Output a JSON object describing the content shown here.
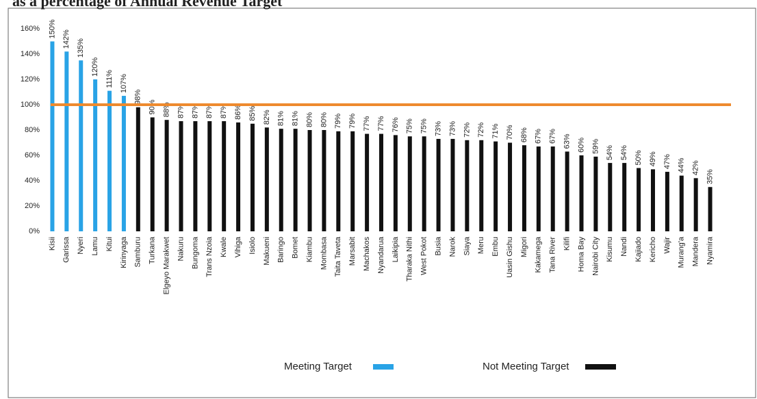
{
  "chart_data": {
    "type": "bar",
    "title": "as a percentage of Annual Revenue Target",
    "categories": [
      "Kisii",
      "Garissa",
      "Nyeri",
      "Lamu",
      "Kitui",
      "Kirinyaga",
      "Samburu",
      "Turkana",
      "Elgeyo Marakwet",
      "Nakuru",
      "Bungoma",
      "Trans Nzoia",
      "Kwale",
      "Vihiga",
      "Isiolo",
      "Makueni",
      "Baringo",
      "Bomet",
      "Kiambu",
      "Mombasa",
      "Taita Taveta",
      "Marsabit",
      "Machakos",
      "Nyandarua",
      "Laikipia",
      "Tharaka Nithi",
      "West Pokot",
      "Busia",
      "Narok",
      "Siaya",
      "Meru",
      "Embu",
      "Uasin Gishu",
      "Migori",
      "Kakamega",
      "Tana River",
      "Kilifi",
      "Homa Bay",
      "Nairobi City",
      "Kisumu",
      "Nandi",
      "Kajiado",
      "Kericho",
      "Wajir",
      "Murang'a",
      "Mandera",
      "Nyamira"
    ],
    "series": [
      {
        "name": "Meeting Target",
        "color": "#29a3e6",
        "values": [
          150,
          142,
          135,
          120,
          111,
          107,
          null,
          null,
          null,
          null,
          null,
          null,
          null,
          null,
          null,
          null,
          null,
          null,
          null,
          null,
          null,
          null,
          null,
          null,
          null,
          null,
          null,
          null,
          null,
          null,
          null,
          null,
          null,
          null,
          null,
          null,
          null,
          null,
          null,
          null,
          null,
          null,
          null,
          null,
          null,
          null,
          null
        ],
        "value_labels": [
          "150%",
          "142%",
          "135%",
          "120%",
          "111%",
          "107%",
          null,
          null,
          null,
          null,
          null,
          null,
          null,
          null,
          null,
          null,
          null,
          null,
          null,
          null,
          null,
          null,
          null,
          null,
          null,
          null,
          null,
          null,
          null,
          null,
          null,
          null,
          null,
          null,
          null,
          null,
          null,
          null,
          null,
          null,
          null,
          null,
          null,
          null,
          null,
          null,
          null
        ]
      },
      {
        "name": "Not Meeting Target",
        "color": "#111111",
        "values": [
          null,
          null,
          null,
          null,
          null,
          null,
          98,
          90,
          88,
          87,
          87,
          87,
          87,
          86,
          85,
          82,
          81,
          81,
          80,
          80,
          79,
          79,
          77,
          77,
          76,
          75,
          75,
          73,
          73,
          72,
          72,
          71,
          70,
          68,
          67,
          67,
          63,
          60,
          59,
          54,
          54,
          50,
          49,
          47,
          44,
          42,
          35
        ],
        "value_labels": [
          null,
          null,
          null,
          null,
          null,
          null,
          "98%",
          "90%",
          "88%",
          "87%",
          "87%",
          "87%",
          "87%",
          "86%",
          "85%",
          "82%",
          "81%",
          "81%",
          "80%",
          "80%",
          "79%",
          "79%",
          "77%",
          "77%",
          "76%",
          "75%",
          "75%",
          "73%",
          "73%",
          "72%",
          "72%",
          "71%",
          "70%",
          "68%",
          "67%",
          "67%",
          "63%",
          "60%",
          "59%",
          "54%",
          "54%",
          "50%",
          "49%",
          "47%",
          "44%",
          "42%",
          "35%"
        ]
      }
    ],
    "target_line": {
      "value": 100,
      "color": "#ee8a2e"
    },
    "ylim": [
      0,
      160
    ],
    "yticks": [
      {
        "value": 0,
        "label": "0%"
      },
      {
        "value": 20,
        "label": "20%"
      },
      {
        "value": 40,
        "label": "40%"
      },
      {
        "value": 60,
        "label": "60%"
      },
      {
        "value": 80,
        "label": "80%"
      },
      {
        "value": 100,
        "label": "100%"
      },
      {
        "value": 120,
        "label": "120%"
      },
      {
        "value": 140,
        "label": "140%"
      },
      {
        "value": 160,
        "label": "160%"
      }
    ],
    "grid": false
  }
}
